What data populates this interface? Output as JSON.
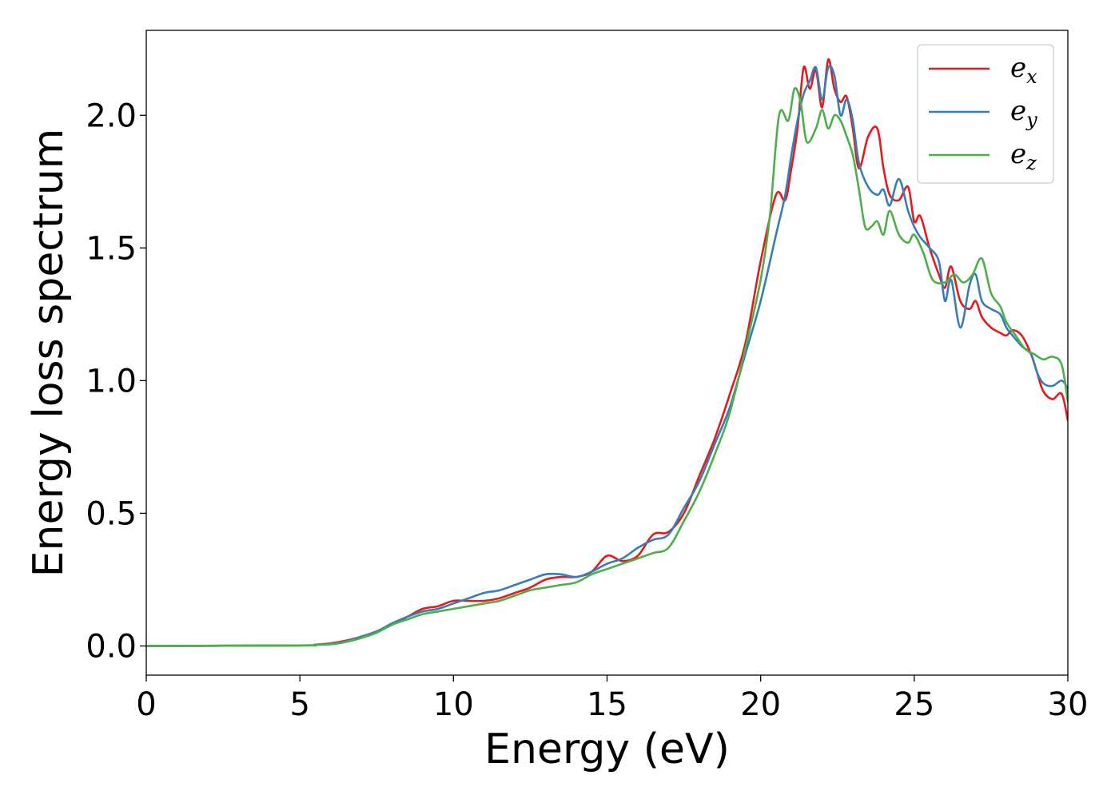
{
  "chart_data": {
    "type": "line",
    "title": "",
    "xlabel": "Energy (eV)",
    "ylabel": "Energy loss spectrum",
    "xlim": [
      0,
      30
    ],
    "ylim": [
      -0.11,
      2.32
    ],
    "xticks": [
      0,
      5,
      10,
      15,
      20,
      25,
      30
    ],
    "xtick_labels": [
      "0",
      "5",
      "10",
      "15",
      "20",
      "25",
      "30"
    ],
    "yticks": [
      0.0,
      0.5,
      1.0,
      1.5,
      2.0
    ],
    "ytick_labels": [
      "0.0",
      "0.5",
      "1.0",
      "1.5",
      "2.0"
    ],
    "grid": false,
    "legend_position": "top-right",
    "series": [
      {
        "name": "e_x",
        "label_base": "e",
        "label_sub": "x",
        "color": "#e41a1c",
        "x": [
          0,
          5,
          5.5,
          6,
          6.5,
          7,
          7.5,
          8,
          8.5,
          9,
          9.5,
          10,
          10.5,
          11,
          11.5,
          12,
          12.5,
          13,
          13.5,
          14,
          14.5,
          15,
          15.5,
          16,
          16.5,
          17,
          17.5,
          18,
          18.5,
          19,
          19.5,
          20,
          20.5,
          20.8,
          21,
          21.2,
          21.4,
          21.6,
          21.8,
          22,
          22.2,
          22.4,
          22.6,
          22.8,
          23,
          23.2,
          23.5,
          23.8,
          24,
          24.2,
          24.5,
          24.8,
          25,
          25.2,
          25.5,
          25.8,
          26,
          26.2,
          26.5,
          26.8,
          27,
          27.2,
          27.5,
          27.8,
          28,
          28.2,
          28.5,
          28.8,
          29,
          29.2,
          29.5,
          29.8,
          30
        ],
        "y": [
          0.0,
          0.002,
          0.005,
          0.01,
          0.02,
          0.035,
          0.055,
          0.08,
          0.11,
          0.14,
          0.15,
          0.17,
          0.17,
          0.17,
          0.18,
          0.2,
          0.22,
          0.25,
          0.26,
          0.26,
          0.28,
          0.34,
          0.32,
          0.34,
          0.42,
          0.43,
          0.5,
          0.64,
          0.78,
          0.95,
          1.14,
          1.45,
          1.7,
          1.68,
          1.8,
          1.95,
          2.18,
          2.1,
          2.17,
          2.03,
          2.21,
          2.1,
          2.05,
          2.07,
          1.95,
          1.8,
          1.92,
          1.95,
          1.8,
          1.7,
          1.68,
          1.73,
          1.6,
          1.62,
          1.5,
          1.4,
          1.35,
          1.43,
          1.3,
          1.27,
          1.3,
          1.24,
          1.2,
          1.18,
          1.17,
          1.19,
          1.17,
          1.1,
          1.03,
          0.96,
          0.93,
          0.95,
          0.85
        ]
      },
      {
        "name": "e_y",
        "label_base": "e",
        "label_sub": "y",
        "color": "#377eb8",
        "x": [
          0,
          5,
          5.5,
          6,
          6.5,
          7,
          7.5,
          8,
          8.5,
          9,
          9.5,
          10,
          10.5,
          11,
          11.5,
          12,
          12.5,
          13,
          13.5,
          14,
          14.5,
          15,
          15.5,
          16,
          16.5,
          17,
          17.5,
          18,
          18.5,
          19,
          19.5,
          20,
          20.5,
          20.8,
          21,
          21.2,
          21.4,
          21.6,
          21.8,
          22,
          22.2,
          22.4,
          22.6,
          22.8,
          23,
          23.2,
          23.5,
          23.8,
          24,
          24.2,
          24.5,
          24.8,
          25,
          25.2,
          25.5,
          25.8,
          26,
          26.2,
          26.5,
          26.8,
          27,
          27.2,
          27.5,
          27.8,
          28,
          28.2,
          28.5,
          28.8,
          29,
          29.2,
          29.5,
          29.8,
          30
        ],
        "y": [
          0.0,
          0.002,
          0.004,
          0.008,
          0.018,
          0.035,
          0.055,
          0.085,
          0.11,
          0.13,
          0.14,
          0.16,
          0.18,
          0.2,
          0.21,
          0.23,
          0.25,
          0.27,
          0.27,
          0.26,
          0.28,
          0.31,
          0.33,
          0.37,
          0.4,
          0.42,
          0.52,
          0.62,
          0.76,
          0.9,
          1.1,
          1.3,
          1.55,
          1.7,
          1.85,
          1.98,
          2.08,
          2.13,
          2.18,
          2.06,
          2.18,
          2.15,
          2.0,
          2.06,
          1.98,
          1.82,
          1.73,
          1.7,
          1.72,
          1.66,
          1.76,
          1.64,
          1.58,
          1.54,
          1.5,
          1.45,
          1.3,
          1.38,
          1.2,
          1.36,
          1.4,
          1.3,
          1.27,
          1.25,
          1.2,
          1.17,
          1.13,
          1.1,
          1.03,
          0.99,
          0.98,
          1.0,
          0.97
        ]
      },
      {
        "name": "e_z",
        "label_base": "e",
        "label_sub": "z",
        "color": "#4daf4a",
        "x": [
          0,
          5,
          5.5,
          6,
          6.5,
          7,
          7.5,
          8,
          8.5,
          9,
          9.5,
          10,
          10.5,
          11,
          11.5,
          12,
          12.5,
          13,
          13.5,
          14,
          14.5,
          15,
          15.5,
          16,
          16.5,
          17,
          17.5,
          18,
          18.5,
          19,
          19.5,
          20,
          20.3,
          20.6,
          20.9,
          21.1,
          21.3,
          21.5,
          21.8,
          22,
          22.2,
          22.4,
          22.6,
          22.8,
          23,
          23.2,
          23.4,
          23.6,
          23.8,
          24,
          24.2,
          24.5,
          24.8,
          25,
          25.3,
          25.6,
          26,
          26.3,
          26.6,
          26.9,
          27.2,
          27.5,
          27.8,
          28,
          28.3,
          28.6,
          28.9,
          29.2,
          29.5,
          29.8,
          30
        ],
        "y": [
          0.0,
          0.002,
          0.004,
          0.006,
          0.015,
          0.03,
          0.05,
          0.08,
          0.1,
          0.12,
          0.13,
          0.14,
          0.15,
          0.16,
          0.17,
          0.19,
          0.21,
          0.22,
          0.23,
          0.24,
          0.27,
          0.29,
          0.31,
          0.33,
          0.35,
          0.37,
          0.47,
          0.58,
          0.72,
          0.88,
          1.12,
          1.38,
          1.62,
          2.0,
          1.98,
          2.1,
          2.05,
          1.9,
          1.95,
          2.02,
          1.95,
          2.0,
          1.98,
          1.92,
          1.85,
          1.72,
          1.58,
          1.58,
          1.6,
          1.55,
          1.64,
          1.55,
          1.52,
          1.55,
          1.48,
          1.38,
          1.37,
          1.4,
          1.37,
          1.4,
          1.46,
          1.33,
          1.28,
          1.22,
          1.17,
          1.12,
          1.1,
          1.08,
          1.09,
          1.06,
          0.92
        ]
      }
    ]
  }
}
